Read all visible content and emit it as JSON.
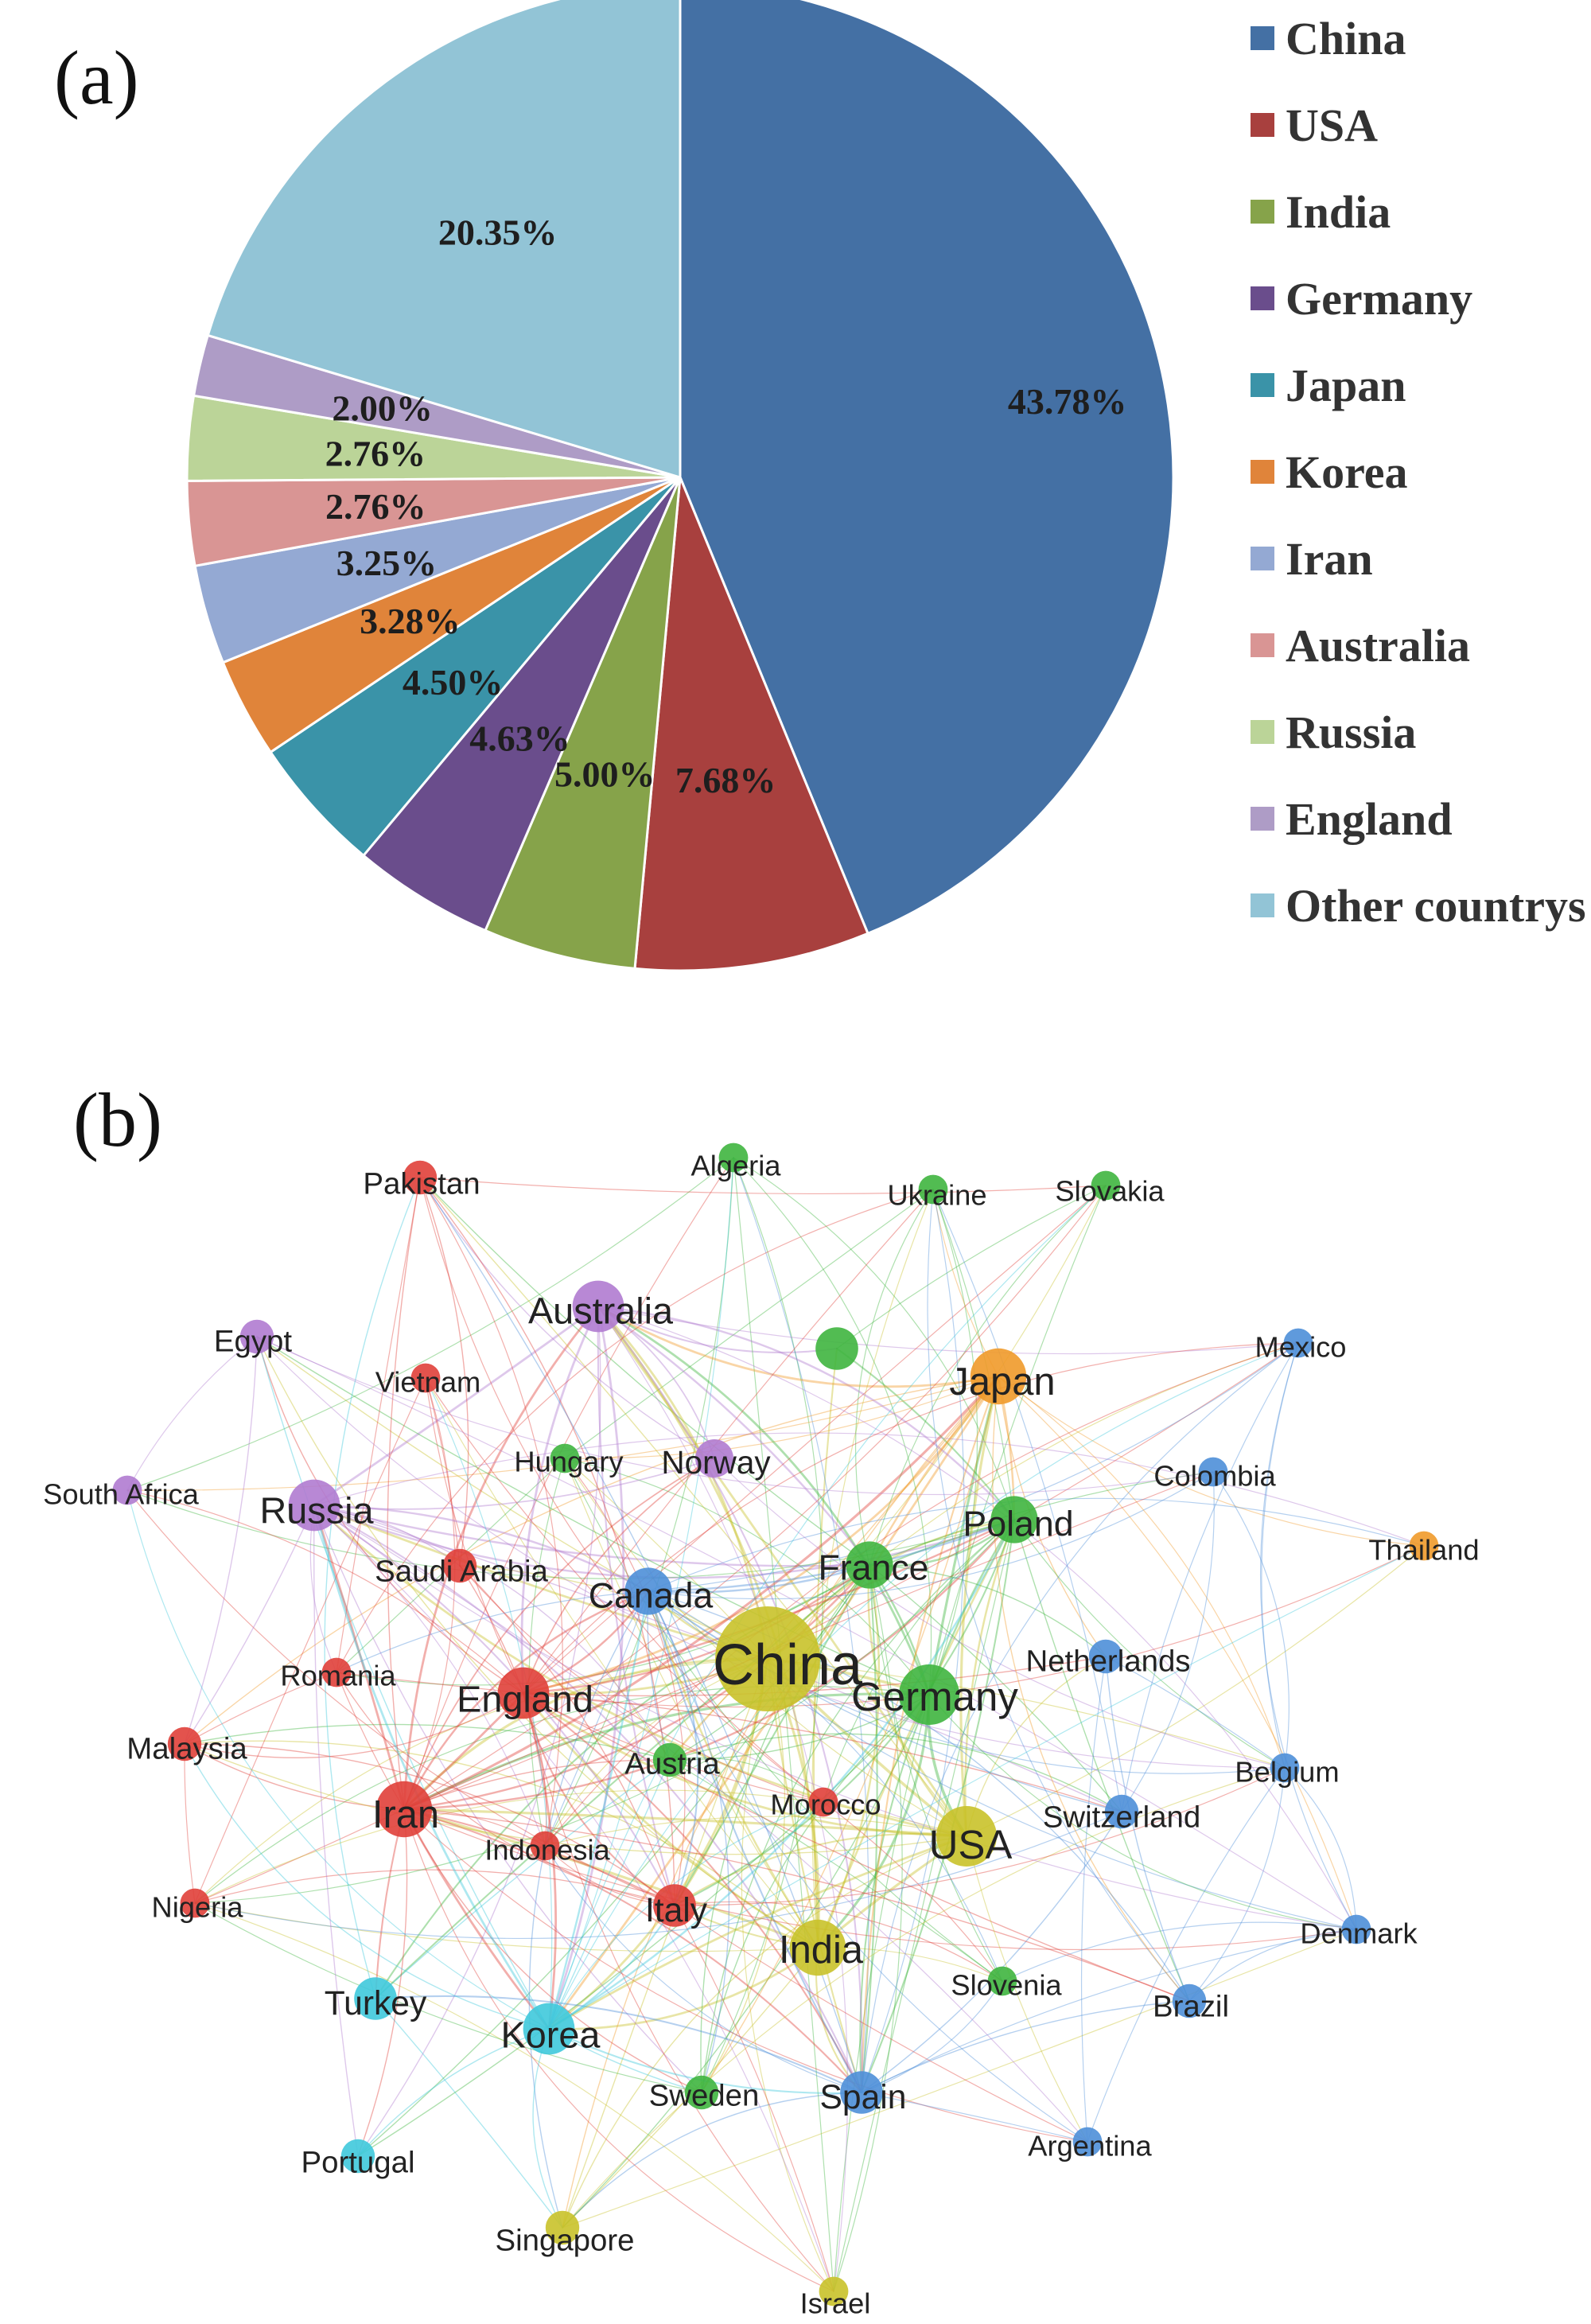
{
  "panel_a": {
    "label": "(a)",
    "chart_data": {
      "type": "pie",
      "title": "",
      "slices": [
        {
          "name": "China",
          "value": 43.78,
          "label": "43.78%",
          "color": "#4470A4"
        },
        {
          "name": "USA",
          "value": 7.68,
          "label": "7.68%",
          "color": "#A8403E"
        },
        {
          "name": "India",
          "value": 5.0,
          "label": "5.00%",
          "color": "#86A34A"
        },
        {
          "name": "Germany",
          "value": 4.63,
          "label": "4.63%",
          "color": "#6A4D8C"
        },
        {
          "name": "Japan",
          "value": 4.5,
          "label": "4.50%",
          "color": "#3A93A8"
        },
        {
          "name": "Korea",
          "value": 3.28,
          "label": "3.28%",
          "color": "#E0843A"
        },
        {
          "name": "Iran",
          "value": 3.25,
          "label": "3.25%",
          "color": "#94A9D3"
        },
        {
          "name": "Australia",
          "value": 2.76,
          "label": "2.76%",
          "color": "#D99594"
        },
        {
          "name": "Russia",
          "value": 2.76,
          "label": "2.76%",
          "color": "#BBD498"
        },
        {
          "name": "England",
          "value": 2.0,
          "label": "2.00%",
          "color": "#AE9CC6"
        },
        {
          "name": "Other countrys",
          "value": 20.35,
          "label": "20.35%",
          "color": "#92C4D6"
        }
      ],
      "legend_position": "right"
    }
  },
  "panel_b": {
    "label": "(b)",
    "network": {
      "type": "network",
      "nodes": [
        {
          "name": "China",
          "cluster": "yellow",
          "weight": 10
        },
        {
          "name": "USA",
          "cluster": "yellow",
          "weight": 5
        },
        {
          "name": "India",
          "cluster": "yellow",
          "weight": 4.5
        },
        {
          "name": "Singapore",
          "cluster": "yellow",
          "weight": 2
        },
        {
          "name": "Israel",
          "cluster": "yellow",
          "weight": 1.5
        },
        {
          "name": "Germany",
          "cluster": "green",
          "weight": 5
        },
        {
          "name": "France",
          "cluster": "green",
          "weight": 3.5
        },
        {
          "name": "Poland",
          "cluster": "green",
          "weight": 3.5
        },
        {
          "name": "",
          "cluster": "green",
          "weight": 3
        },
        {
          "name": "Algeria",
          "cluster": "green",
          "weight": 1.5
        },
        {
          "name": "Ukraine",
          "cluster": "green",
          "weight": 1.5
        },
        {
          "name": "Slovakia",
          "cluster": "green",
          "weight": 1.5
        },
        {
          "name": "Hungary",
          "cluster": "green",
          "weight": 1.5
        },
        {
          "name": "Austria",
          "cluster": "green",
          "weight": 2
        },
        {
          "name": "Slovenia",
          "cluster": "green",
          "weight": 1.5
        },
        {
          "name": "Sweden",
          "cluster": "green",
          "weight": 2
        },
        {
          "name": "Japan",
          "cluster": "orange",
          "weight": 4.5
        },
        {
          "name": "Thailand",
          "cluster": "orange",
          "weight": 1.5
        },
        {
          "name": "Australia",
          "cluster": "purple",
          "weight": 4
        },
        {
          "name": "Russia",
          "cluster": "purple",
          "weight": 4
        },
        {
          "name": "Norway",
          "cluster": "purple",
          "weight": 2.5
        },
        {
          "name": "Egypt",
          "cluster": "purple",
          "weight": 2
        },
        {
          "name": "South Africa",
          "cluster": "purple",
          "weight": 1.5
        },
        {
          "name": "England",
          "cluster": "red",
          "weight": 4
        },
        {
          "name": "Iran",
          "cluster": "red",
          "weight": 4.5
        },
        {
          "name": "Italy",
          "cluster": "red",
          "weight": 3
        },
        {
          "name": "Pakistan",
          "cluster": "red",
          "weight": 2
        },
        {
          "name": "Vietnam",
          "cluster": "red",
          "weight": 1.5
        },
        {
          "name": "Saudi Arabia",
          "cluster": "red",
          "weight": 2
        },
        {
          "name": "Romania",
          "cluster": "red",
          "weight": 1.5
        },
        {
          "name": "Malaysia",
          "cluster": "red",
          "weight": 2
        },
        {
          "name": "Nigeria",
          "cluster": "red",
          "weight": 1.5
        },
        {
          "name": "Indonesia",
          "cluster": "red",
          "weight": 1.5
        },
        {
          "name": "Morocco",
          "cluster": "red",
          "weight": 1.5
        },
        {
          "name": "Canada",
          "cluster": "blue",
          "weight": 3.5
        },
        {
          "name": "Spain",
          "cluster": "blue",
          "weight": 3
        },
        {
          "name": "Switzerland",
          "cluster": "blue",
          "weight": 2
        },
        {
          "name": "Netherlands",
          "cluster": "blue",
          "weight": 2
        },
        {
          "name": "Belgium",
          "cluster": "blue",
          "weight": 1.5
        },
        {
          "name": "Denmark",
          "cluster": "blue",
          "weight": 1.5
        },
        {
          "name": "Brazil",
          "cluster": "blue",
          "weight": 2
        },
        {
          "name": "Argentina",
          "cluster": "blue",
          "weight": 1.5
        },
        {
          "name": "Mexico",
          "cluster": "blue",
          "weight": 1.5
        },
        {
          "name": "Colombia",
          "cluster": "blue",
          "weight": 1.5
        },
        {
          "name": "Korea",
          "cluster": "cyan",
          "weight": 4
        },
        {
          "name": "Turkey",
          "cluster": "cyan",
          "weight": 3
        },
        {
          "name": "Portugal",
          "cluster": "cyan",
          "weight": 2
        }
      ],
      "cluster_colors": {
        "yellow": "#C9C22A",
        "green": "#3FB53F",
        "orange": "#F09A2A",
        "purple": "#B07BD0",
        "red": "#E0403A",
        "blue": "#4E8FD8",
        "cyan": "#3FC9DC"
      }
    }
  }
}
